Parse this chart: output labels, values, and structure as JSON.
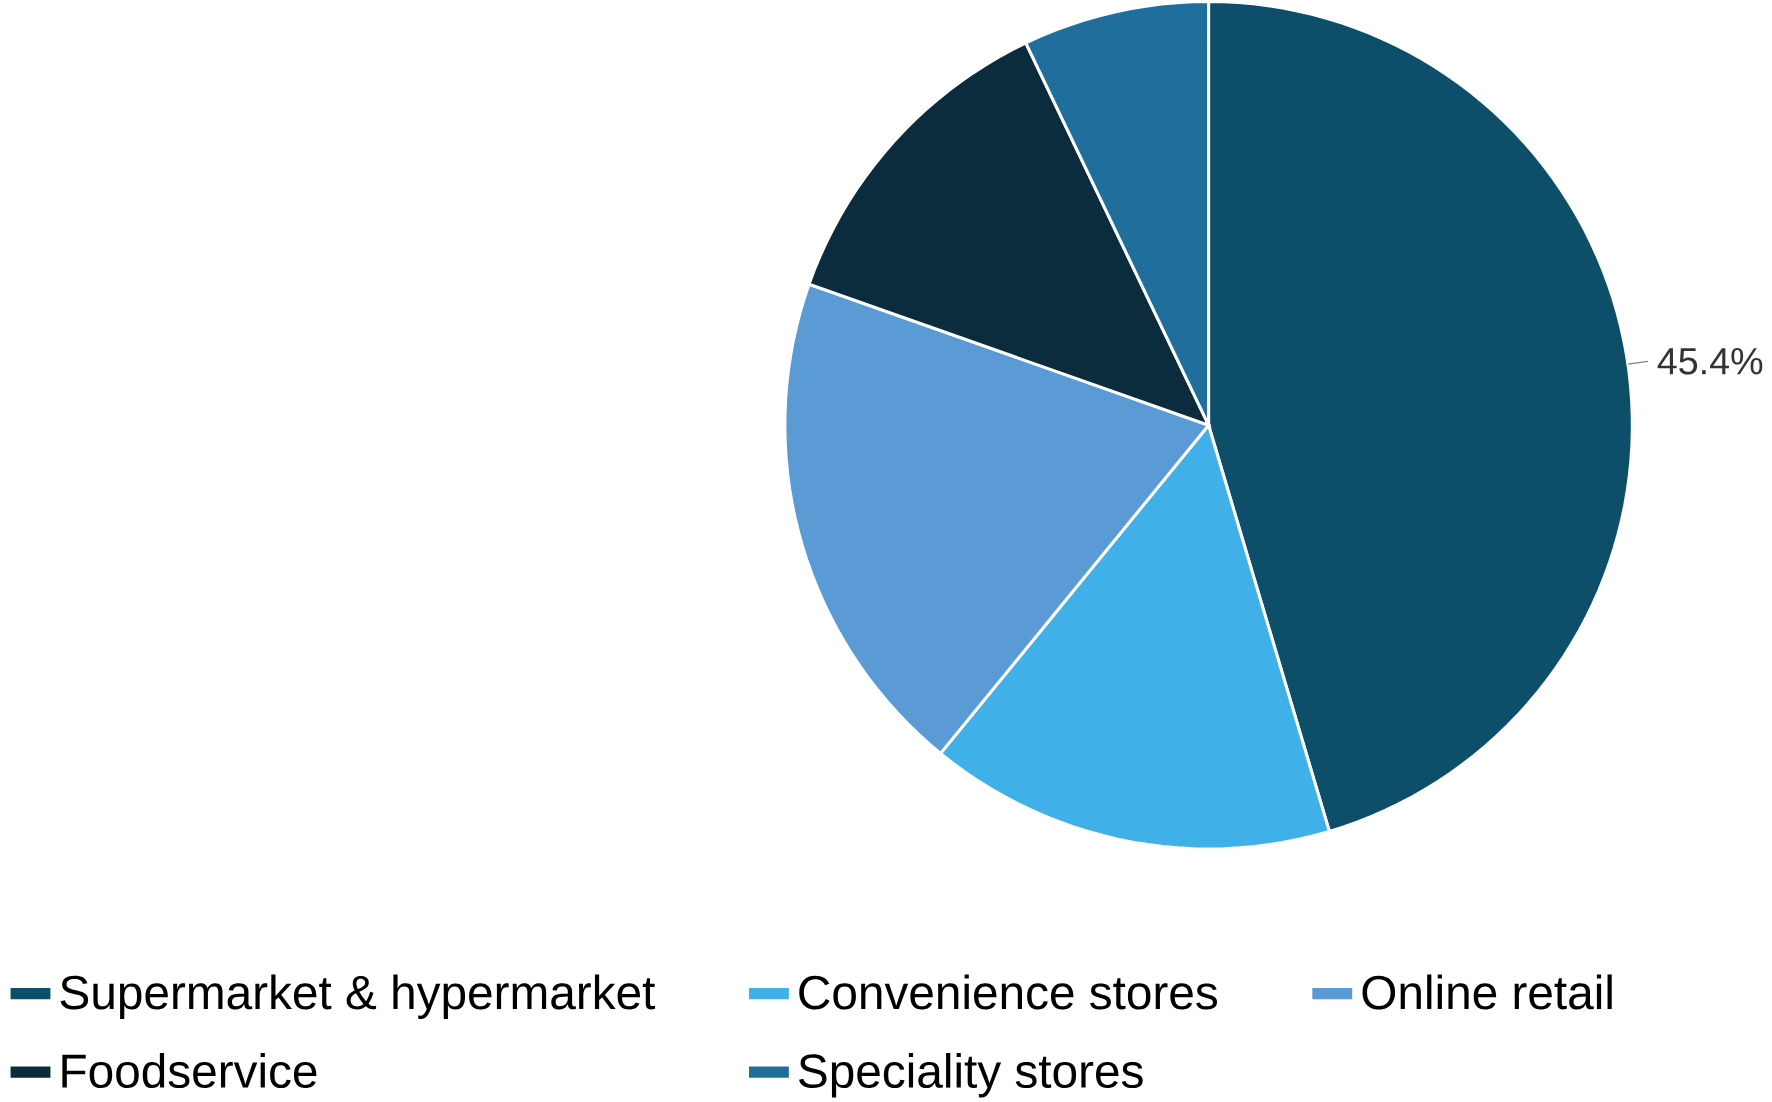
{
  "chart_data": {
    "type": "pie",
    "categories": [
      "Supermarket & hypermarket",
      "Convenience stores",
      "Online retail",
      "Foodservice",
      "Speciality stores"
    ],
    "values": [
      45.4,
      15.5,
      19.5,
      12.5,
      7.1
    ],
    "colors": [
      "#0d4f68",
      "#40b0e8",
      "#5b9bd5",
      "#0a2c3c",
      "#1f6e9c"
    ],
    "value_labels": [
      "45.4%",
      null,
      null,
      null,
      null
    ],
    "legend": "bottom"
  }
}
